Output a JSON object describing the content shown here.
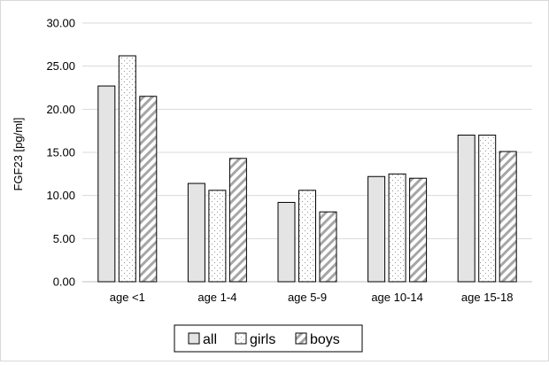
{
  "chart_data": {
    "type": "bar",
    "title": "",
    "xlabel": "",
    "ylabel": "FGF23 [pg/ml]",
    "ylim": [
      0,
      30
    ],
    "yticks": [
      "0.00",
      "5.00",
      "10.00",
      "15.00",
      "20.00",
      "25.00",
      "30.00"
    ],
    "grid": true,
    "legend_position": "bottom",
    "categories": [
      "age <1",
      "age 1-4",
      "age 5-9",
      "age 10-14",
      "age 15-18"
    ],
    "series": [
      {
        "name": "all",
        "values": [
          22.7,
          11.4,
          9.2,
          12.2,
          17.0
        ],
        "pattern": "solid-gray"
      },
      {
        "name": "girls",
        "values": [
          26.2,
          10.6,
          10.6,
          12.5,
          17.0
        ],
        "pattern": "dots"
      },
      {
        "name": "boys",
        "values": [
          21.5,
          14.3,
          8.1,
          12.0,
          15.1
        ],
        "pattern": "diagonal-stripes"
      }
    ]
  }
}
